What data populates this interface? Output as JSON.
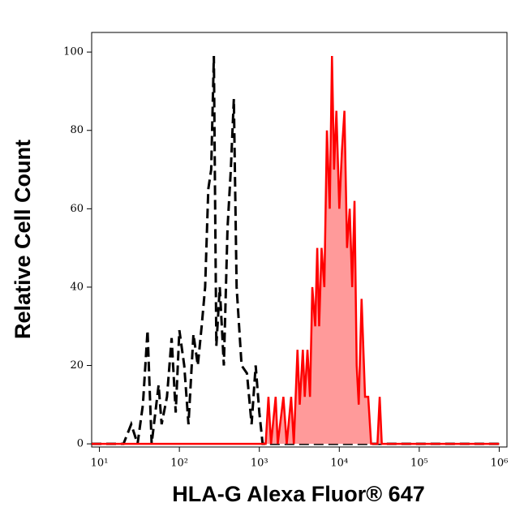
{
  "chart_data": {
    "type": "line",
    "x_label": "HLA-G Alexa Fluor® 647",
    "y_label": "Relative Cell Count",
    "xlog": true,
    "xlim": [
      8,
      1250000
    ],
    "ylim": [
      -0.8,
      105
    ],
    "xticks": [
      {
        "value": 10,
        "label": "10¹"
      },
      {
        "value": 100,
        "label": "10²"
      },
      {
        "value": 1000,
        "label": "10³"
      },
      {
        "value": 10000,
        "label": "10⁴"
      },
      {
        "value": 100000,
        "label": "10⁵"
      },
      {
        "value": 1000000,
        "label": "10⁶"
      }
    ],
    "yticks": [
      0,
      20,
      40,
      60,
      80,
      100
    ],
    "series": [
      {
        "color": "#000000",
        "dashed": true,
        "filled": false,
        "x": [
          8,
          20,
          25,
          30,
          35,
          40,
          45,
          55,
          60,
          70,
          80,
          90,
          100,
          115,
          130,
          150,
          170,
          190,
          210,
          230,
          250,
          270,
          290,
          320,
          360,
          400,
          440,
          480,
          520,
          600,
          700,
          800,
          900,
          1000,
          1100,
          1000000
        ],
        "values": [
          0,
          0,
          5,
          0,
          10,
          29,
          0,
          15,
          5,
          12,
          27,
          8,
          29,
          20,
          5,
          28,
          20,
          30,
          40,
          65,
          70,
          99,
          25,
          40,
          20,
          55,
          70,
          88,
          40,
          20,
          18,
          5,
          20,
          8,
          0,
          0
        ]
      },
      {
        "color": "#ff0000",
        "fill": "#ff9a9a",
        "dashed": false,
        "filled": true,
        "x": [
          8,
          1200,
          1300,
          1400,
          1600,
          1700,
          2000,
          2200,
          2500,
          2700,
          3000,
          3200,
          3500,
          3700,
          4000,
          4300,
          4600,
          5000,
          5300,
          5600,
          6000,
          6500,
          7000,
          7600,
          8100,
          8600,
          9200,
          10000,
          10800,
          11600,
          12500,
          13500,
          14500,
          15500,
          16500,
          17500,
          19000,
          21000,
          23000,
          25000,
          30000,
          32000,
          34000,
          1000000
        ],
        "values": [
          0,
          0,
          12,
          0,
          12,
          0,
          12,
          0,
          12,
          0,
          24,
          10,
          24,
          12,
          24,
          12,
          40,
          30,
          50,
          30,
          50,
          40,
          80,
          60,
          99,
          70,
          85,
          60,
          75,
          85,
          50,
          60,
          40,
          62,
          20,
          10,
          37,
          12,
          12,
          0,
          0,
          12,
          0,
          0
        ]
      }
    ]
  }
}
